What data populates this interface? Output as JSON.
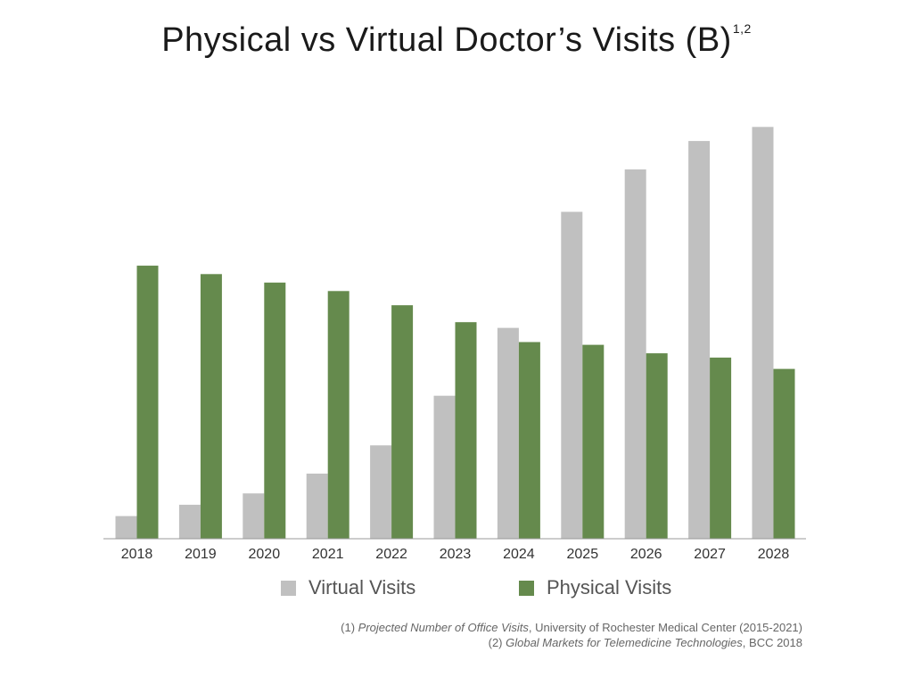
{
  "title": "Physical vs Virtual Doctor’s Visits (B)",
  "title_superscript": "1,2",
  "chart_data": {
    "type": "bar",
    "title": "Physical vs Virtual Doctor’s Visits (B)",
    "xlabel": "",
    "ylabel": "",
    "categories": [
      "2018",
      "2019",
      "2020",
      "2021",
      "2022",
      "2023",
      "2024",
      "2025",
      "2026",
      "2027",
      "2028"
    ],
    "series": [
      {
        "name": "Virtual Visits",
        "color": "#c0c0c0",
        "values": [
          0.16,
          0.24,
          0.32,
          0.46,
          0.66,
          1.01,
          1.49,
          2.31,
          2.61,
          2.81,
          2.91
        ]
      },
      {
        "name": "Physical Visits",
        "color": "#658a4d",
        "values": [
          1.93,
          1.87,
          1.81,
          1.75,
          1.65,
          1.53,
          1.39,
          1.37,
          1.31,
          1.28,
          1.2
        ]
      }
    ],
    "ylim": [
      0,
      3.0
    ],
    "grid": false,
    "legend": "bottom"
  },
  "legend": {
    "virtual_label": "Virtual Visits",
    "physical_label": "Physical Visits"
  },
  "footnotes": {
    "f1_prefix": "(1) ",
    "f1_italic": "Projected Number of Office Visits",
    "f1_rest": ", University of Rochester Medical Center (2015-2021)",
    "f2_prefix": "(2) ",
    "f2_italic": "Global Markets for Telemedicine Technologies",
    "f2_rest": ", BCC 2018"
  }
}
